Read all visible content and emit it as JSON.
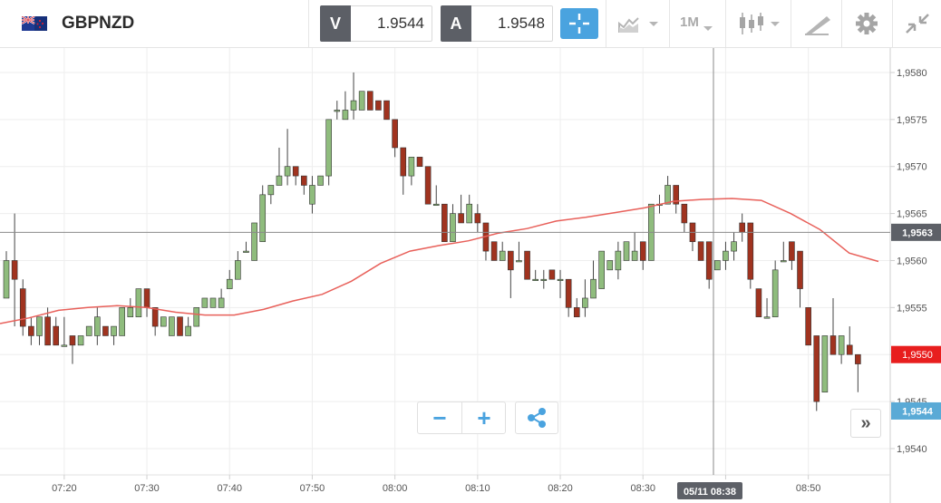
{
  "header": {
    "symbol": "GBPNZD",
    "sell": {
      "label": "V",
      "value": "1.9544"
    },
    "buy": {
      "label": "A",
      "value": "1.9548"
    },
    "timeframe": "1M",
    "icons": [
      "uk-nz-flag-icon",
      "crosshair-icon",
      "chart-type-icon",
      "candlestick-icon",
      "drawing-tools-icon",
      "gear-icon",
      "collapse-icon"
    ]
  },
  "chart_controls": {
    "zoom_out": "−",
    "zoom_in": "+",
    "forward": "»"
  },
  "colors": {
    "up": "#8fbc7d",
    "down": "#a0331f",
    "ma": "#e8605a",
    "current_price": "#e81e1e",
    "bid_price": "#5aaad6",
    "accent": "#4aa3df"
  },
  "chart_data": {
    "type": "candlestick",
    "title": "",
    "xlabel": "",
    "ylabel": "",
    "x_ticks": [
      "07:20",
      "07:30",
      "07:40",
      "07:50",
      "08:00",
      "08:10",
      "08:20",
      "08:30",
      "08:40",
      "08:50"
    ],
    "y_ticks": [
      "1,9540",
      "1,9545",
      "1,9550",
      "1,9555",
      "1,9560",
      "1,9565",
      "1,9570",
      "1,9575",
      "1,9580"
    ],
    "ylim": [
      1.95372,
      1.95826
    ],
    "crosshair": {
      "time": "05/11 08:38",
      "price": "1,9563"
    },
    "current_price_label": "1,9550",
    "bid_price_label": "1,9544",
    "grid": true,
    "moving_average": [
      1.95533,
      1.95539,
      1.95547,
      1.9555,
      1.95552,
      1.9555,
      1.95545,
      1.95542,
      1.95542,
      1.95548,
      1.95557,
      1.95564,
      1.95578,
      1.95597,
      1.9561,
      1.95616,
      1.95621,
      1.95629,
      1.95634,
      1.95642,
      1.95646,
      1.95651,
      1.95656,
      1.95663,
      1.95665,
      1.95666,
      1.95664,
      1.9565,
      1.95633,
      1.95608,
      1.95599
    ],
    "candles": [
      [
        1.9556,
        1.956,
        1.9561,
        1.9556
      ],
      [
        1.956,
        1.9558,
        1.9565,
        1.9553
      ],
      [
        1.9557,
        1.9553,
        1.9558,
        1.9552
      ],
      [
        1.9553,
        1.9552,
        1.9554,
        1.9551
      ],
      [
        1.9552,
        1.9554,
        1.9554,
        1.9551
      ],
      [
        1.9554,
        1.9551,
        1.9555,
        1.9551
      ],
      [
        1.9553,
        1.9551,
        1.9554,
        1.9551
      ],
      [
        1.9551,
        1.9551,
        1.9554,
        1.9551
      ],
      [
        1.9552,
        1.9551,
        1.9552,
        1.9549
      ],
      [
        1.9551,
        1.9552,
        1.9552,
        1.9551
      ],
      [
        1.9552,
        1.9553,
        1.9553,
        1.9552
      ],
      [
        1.9552,
        1.9554,
        1.9555,
        1.9551
      ],
      [
        1.9553,
        1.9552,
        1.9553,
        1.9552
      ],
      [
        1.9552,
        1.9553,
        1.9553,
        1.9551
      ],
      [
        1.9552,
        1.9555,
        1.9555,
        1.9552
      ],
      [
        1.9554,
        1.9555,
        1.9556,
        1.9554
      ],
      [
        1.9554,
        1.9557,
        1.9557,
        1.9554
      ],
      [
        1.9557,
        1.9555,
        1.9557,
        1.9554
      ],
      [
        1.9555,
        1.9553,
        1.9555,
        1.9552
      ],
      [
        1.9553,
        1.9554,
        1.9554,
        1.9553
      ],
      [
        1.9552,
        1.9554,
        1.9554,
        1.9552
      ],
      [
        1.9554,
        1.9552,
        1.9554,
        1.9552
      ],
      [
        1.9552,
        1.9553,
        1.9554,
        1.9552
      ],
      [
        1.9553,
        1.9555,
        1.9555,
        1.9553
      ],
      [
        1.9555,
        1.9556,
        1.9556,
        1.9555
      ],
      [
        1.9555,
        1.9556,
        1.9556,
        1.9555
      ],
      [
        1.9555,
        1.9556,
        1.9557,
        1.9555
      ],
      [
        1.9557,
        1.9558,
        1.9559,
        1.9557
      ],
      [
        1.9558,
        1.956,
        1.9561,
        1.9558
      ],
      [
        1.9561,
        1.9561,
        1.9562,
        1.9561
      ],
      [
        1.956,
        1.9564,
        1.9564,
        1.956
      ],
      [
        1.9562,
        1.9567,
        1.9568,
        1.9562
      ],
      [
        1.9567,
        1.9568,
        1.9568,
        1.9566
      ],
      [
        1.9568,
        1.9569,
        1.9572,
        1.9568
      ],
      [
        1.9569,
        1.957,
        1.9574,
        1.9568
      ],
      [
        1.957,
        1.9569,
        1.957,
        1.9568
      ],
      [
        1.9569,
        1.9568,
        1.9569,
        1.9567
      ],
      [
        1.9566,
        1.9568,
        1.9569,
        1.9565
      ],
      [
        1.9568,
        1.9569,
        1.9569,
        1.9568
      ],
      [
        1.9569,
        1.9575,
        1.9575,
        1.9568
      ],
      [
        1.9576,
        1.9576,
        1.9577,
        1.9575
      ],
      [
        1.9575,
        1.9576,
        1.9578,
        1.9575
      ],
      [
        1.9576,
        1.9577,
        1.958,
        1.9575
      ],
      [
        1.9576,
        1.9578,
        1.9578,
        1.9576
      ],
      [
        1.9578,
        1.9576,
        1.9578,
        1.9576
      ],
      [
        1.9577,
        1.9576,
        1.9577,
        1.9576
      ],
      [
        1.9577,
        1.9575,
        1.9577,
        1.9575
      ],
      [
        1.9575,
        1.9572,
        1.9575,
        1.9571
      ],
      [
        1.9572,
        1.9569,
        1.9572,
        1.9567
      ],
      [
        1.9569,
        1.9571,
        1.9571,
        1.9568
      ],
      [
        1.9571,
        1.957,
        1.9571,
        1.957
      ],
      [
        1.957,
        1.9566,
        1.957,
        1.9566
      ],
      [
        1.9566,
        1.9566,
        1.9568,
        1.9566
      ],
      [
        1.9566,
        1.9562,
        1.9566,
        1.9562
      ],
      [
        1.9562,
        1.9565,
        1.9566,
        1.9562
      ],
      [
        1.9565,
        1.9564,
        1.9567,
        1.9564
      ],
      [
        1.9564,
        1.9566,
        1.9567,
        1.9564
      ],
      [
        1.9565,
        1.9564,
        1.9566,
        1.9563
      ],
      [
        1.9564,
        1.9561,
        1.9564,
        1.956
      ],
      [
        1.9562,
        1.956,
        1.9562,
        1.956
      ],
      [
        1.956,
        1.9561,
        1.9562,
        1.956
      ],
      [
        1.9561,
        1.9559,
        1.9561,
        1.9556
      ],
      [
        1.956,
        1.956,
        1.9562,
        1.956
      ],
      [
        1.9561,
        1.9558,
        1.9561,
        1.9558
      ],
      [
        1.9558,
        1.9558,
        1.9559,
        1.9558
      ],
      [
        1.9558,
        1.9558,
        1.9559,
        1.9557
      ],
      [
        1.9559,
        1.9558,
        1.9559,
        1.9558
      ],
      [
        1.9558,
        1.9558,
        1.9559,
        1.9556
      ],
      [
        1.9558,
        1.9555,
        1.9558,
        1.9554
      ],
      [
        1.9555,
        1.9554,
        1.9556,
        1.9554
      ],
      [
        1.9555,
        1.9556,
        1.9558,
        1.9554
      ],
      [
        1.9556,
        1.9558,
        1.956,
        1.9556
      ],
      [
        1.9557,
        1.9561,
        1.9561,
        1.9557
      ],
      [
        1.9559,
        1.956,
        1.956,
        1.9559
      ],
      [
        1.9559,
        1.9561,
        1.9562,
        1.9558
      ],
      [
        1.956,
        1.9562,
        1.9562,
        1.956
      ],
      [
        1.956,
        1.9561,
        1.9563,
        1.956
      ],
      [
        1.9562,
        1.956,
        1.9562,
        1.9559
      ],
      [
        1.956,
        1.9566,
        1.9566,
        1.956
      ],
      [
        1.9566,
        1.9566,
        1.9567,
        1.9565
      ],
      [
        1.9566,
        1.9568,
        1.9569,
        1.9566
      ],
      [
        1.9568,
        1.9566,
        1.9568,
        1.9565
      ],
      [
        1.9566,
        1.9564,
        1.9566,
        1.9563
      ],
      [
        1.9564,
        1.9562,
        1.9564,
        1.9561
      ],
      [
        1.9562,
        1.956,
        1.9562,
        1.956
      ],
      [
        1.9562,
        1.9558,
        1.9562,
        1.9557
      ],
      [
        1.9559,
        1.956,
        1.956,
        1.9559
      ],
      [
        1.956,
        1.9561,
        1.9562,
        1.9559
      ],
      [
        1.9561,
        1.9562,
        1.9563,
        1.956
      ],
      [
        1.9564,
        1.9563,
        1.9565,
        1.9562
      ],
      [
        1.9564,
        1.9558,
        1.9564,
        1.9557
      ],
      [
        1.9557,
        1.9554,
        1.9557,
        1.9554
      ],
      [
        1.9554,
        1.9554,
        1.9556,
        1.9554
      ],
      [
        1.9554,
        1.9559,
        1.956,
        1.9554
      ],
      [
        1.956,
        1.956,
        1.9562,
        1.956
      ],
      [
        1.9562,
        1.956,
        1.9562,
        1.9559
      ],
      [
        1.9561,
        1.9557,
        1.9561,
        1.9555
      ],
      [
        1.9555,
        1.9551,
        1.9555,
        1.9551
      ],
      [
        1.9552,
        1.9545,
        1.9552,
        1.9544
      ],
      [
        1.9546,
        1.9552,
        1.9552,
        1.9546
      ],
      [
        1.9552,
        1.955,
        1.9556,
        1.955
      ],
      [
        1.955,
        1.9552,
        1.9552,
        1.9549
      ],
      [
        1.9551,
        1.955,
        1.9553,
        1.955
      ],
      [
        1.955,
        1.9549,
        1.955,
        1.9546
      ]
    ]
  }
}
